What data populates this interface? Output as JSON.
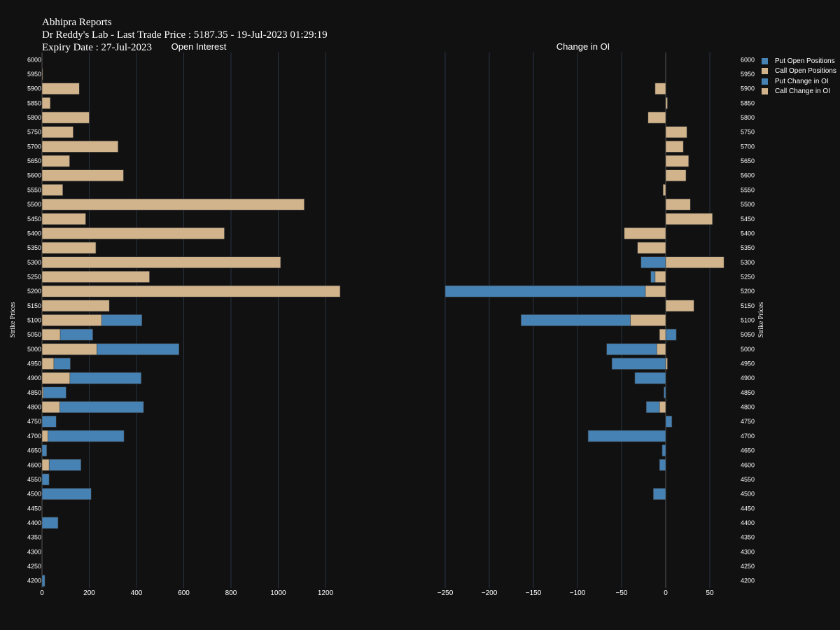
{
  "header": {
    "line1": "Abhipra Reports",
    "line2": "Dr Reddy's Lab - Last Trade Price : 5187.35 - 19-Jul-2023 01:29:19",
    "line3": "Expiry Date : 27-Jul-2023"
  },
  "colors": {
    "put": "#4682b4",
    "call": "#d2b48c",
    "background": "#111111",
    "grid": "#283442"
  },
  "legend": [
    {
      "label": "Put Open Positions",
      "color": "#4682b4"
    },
    {
      "label": "Call Open Positions",
      "color": "#d2b48c"
    },
    {
      "label": "Put Change in OI",
      "color": "#4682b4"
    },
    {
      "label": "Call Change in OI",
      "color": "#d2b48c"
    }
  ],
  "chart_data": [
    {
      "type": "bar",
      "orientation": "horizontal",
      "barmode": "overlay",
      "title": "Open Interest",
      "ylabel": "Strike Prices",
      "xlim": [
        0,
        1350
      ],
      "xticks": [
        0,
        200,
        400,
        600,
        800,
        1000,
        1200
      ],
      "categories": [
        4200,
        4250,
        4300,
        4350,
        4400,
        4450,
        4500,
        4550,
        4600,
        4650,
        4700,
        4750,
        4800,
        4850,
        4900,
        4950,
        5000,
        5050,
        5100,
        5150,
        5200,
        5250,
        5300,
        5350,
        5400,
        5450,
        5500,
        5550,
        5600,
        5650,
        5700,
        5750,
        5800,
        5850,
        5900,
        5950,
        6000
      ],
      "series": [
        {
          "name": "Put Open Positions",
          "values": [
            12,
            0,
            0,
            0,
            68,
            0,
            208,
            30,
            165,
            20,
            347,
            60,
            430,
            102,
            420,
            120,
            580,
            215,
            423,
            0,
            0,
            0,
            0,
            0,
            0,
            0,
            0,
            0,
            0,
            0,
            0,
            0,
            0,
            0,
            0,
            0,
            0
          ]
        },
        {
          "name": "Call Open Positions",
          "values": [
            0,
            0,
            0,
            0,
            0,
            0,
            0,
            0,
            30,
            0,
            25,
            0,
            75,
            5,
            118,
            50,
            232,
            77,
            252,
            285,
            1262,
            455,
            1010,
            228,
            772,
            185,
            1110,
            88,
            345,
            117,
            322,
            132,
            200,
            35,
            158,
            3,
            0
          ]
        }
      ]
    },
    {
      "type": "bar",
      "orientation": "horizontal",
      "barmode": "overlay",
      "title": "Change in OI",
      "ylabel": "Strike Prices",
      "xlim": [
        -255,
        75
      ],
      "xticks": [
        -250,
        -200,
        -150,
        -100,
        -50,
        0,
        50
      ],
      "categories": [
        4200,
        4250,
        4300,
        4350,
        4400,
        4450,
        4500,
        4550,
        4600,
        4650,
        4700,
        4750,
        4800,
        4850,
        4900,
        4950,
        5000,
        5050,
        5100,
        5150,
        5200,
        5250,
        5300,
        5350,
        5400,
        5450,
        5500,
        5550,
        5600,
        5650,
        5700,
        5750,
        5800,
        5850,
        5900,
        5950,
        6000
      ],
      "series": [
        {
          "name": "Put Change in OI",
          "values": [
            0,
            0,
            0,
            0,
            0,
            0,
            -14,
            0,
            -7,
            -4,
            -88,
            7,
            -22,
            -2,
            -35,
            -61,
            -67,
            12,
            -164,
            0,
            -250,
            -17,
            -28,
            0,
            0,
            0,
            0,
            0,
            0,
            0,
            0,
            0,
            0,
            0,
            0,
            0,
            0
          ]
        },
        {
          "name": "Call Change in OI",
          "values": [
            0,
            0,
            0,
            0,
            0,
            0,
            0,
            0,
            0,
            0,
            0,
            0,
            -7,
            0,
            0,
            2,
            -10,
            -7,
            -40,
            32,
            -23,
            -12,
            66,
            -32,
            -47,
            53,
            28,
            -3,
            23,
            26,
            20,
            24,
            -20,
            2,
            -12,
            0,
            0
          ]
        }
      ]
    }
  ]
}
